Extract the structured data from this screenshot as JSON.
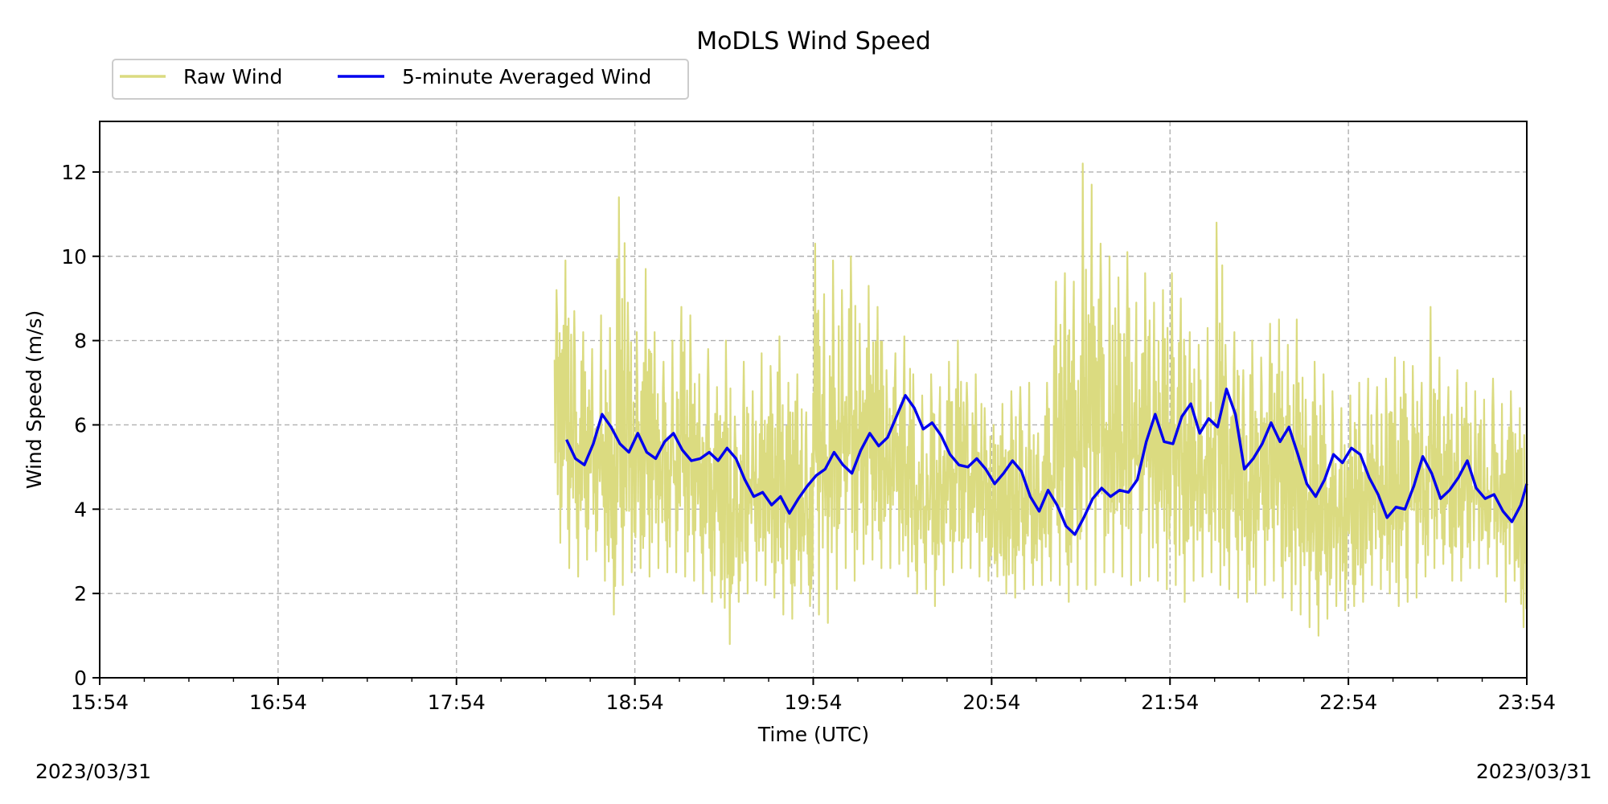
{
  "chart_data": {
    "type": "line",
    "title": "MoDLS Wind Speed",
    "xlabel": "Time (UTC)",
    "ylabel": "Wind Speed (m/s)",
    "xlim": [
      "15:54",
      "23:54"
    ],
    "ylim": [
      0,
      13.2
    ],
    "x_ticks": [
      "15:54",
      "16:54",
      "17:54",
      "18:54",
      "19:54",
      "20:54",
      "21:54",
      "22:54",
      "23:54"
    ],
    "y_ticks": [
      0,
      2,
      4,
      6,
      8,
      10,
      12
    ],
    "grid": true,
    "legend": {
      "placement": "top-left, above plot",
      "entries": [
        "Raw Wind",
        "5-minute Averaged Wind"
      ]
    },
    "date_labels": {
      "start": "2023/03/31",
      "end": "2023/03/31"
    },
    "colors": {
      "raw": "#dbdb80",
      "avg": "#0000ee",
      "grid": "#b0b0b0"
    },
    "series": [
      {
        "name": "Raw Wind",
        "style": "thin line, high-frequency",
        "x": [
          "18:27",
          "18:30",
          "18:33",
          "18:36",
          "18:39",
          "18:42",
          "18:45",
          "18:48",
          "18:51",
          "18:54",
          "18:57",
          "19:00",
          "19:03",
          "19:06",
          "19:09",
          "19:12",
          "19:15",
          "19:18",
          "19:21",
          "19:24",
          "19:27",
          "19:30",
          "19:33",
          "19:36",
          "19:39",
          "19:42",
          "19:45",
          "19:48",
          "19:51",
          "19:54",
          "19:57",
          "20:00",
          "20:03",
          "20:06",
          "20:09",
          "20:12",
          "20:15",
          "20:18",
          "20:21",
          "20:24",
          "20:27",
          "20:30",
          "20:33",
          "20:36",
          "20:39",
          "20:42",
          "20:45",
          "20:48",
          "20:51",
          "20:54",
          "20:57",
          "21:00",
          "21:03",
          "21:06",
          "21:09",
          "21:12",
          "21:15",
          "21:18",
          "21:21",
          "21:24",
          "21:27",
          "21:30",
          "21:33",
          "21:36",
          "21:39",
          "21:42",
          "21:45",
          "21:48",
          "21:51",
          "21:54",
          "21:57",
          "22:00",
          "22:03",
          "22:06",
          "22:09",
          "22:12",
          "22:15",
          "22:18",
          "22:21",
          "22:24",
          "22:27",
          "22:30",
          "22:33",
          "22:36",
          "22:39",
          "22:42",
          "22:45",
          "22:48",
          "22:51",
          "22:54",
          "22:57",
          "23:00",
          "23:03",
          "23:06",
          "23:09",
          "23:12",
          "23:15",
          "23:18",
          "23:21",
          "23:24",
          "23:27",
          "23:30",
          "23:33",
          "23:36",
          "23:39",
          "23:42",
          "23:45",
          "23:48",
          "23:51",
          "23:54"
        ],
        "min": [
          3.2,
          2.6,
          2.4,
          2.8,
          3.0,
          2.3,
          1.5,
          2.2,
          2.5,
          2.6,
          2.4,
          2.6,
          2.5,
          2.5,
          2.4,
          2.3,
          2.0,
          1.8,
          1.9,
          0.8,
          1.8,
          2.0,
          2.3,
          2.2,
          1.9,
          1.5,
          1.4,
          2.0,
          1.7,
          1.5,
          1.3,
          2.1,
          2.6,
          2.3,
          2.7,
          2.8,
          2.6,
          2.6,
          2.7,
          2.4,
          2.0,
          2.1,
          1.7,
          2.2,
          2.5,
          2.6,
          2.6,
          2.4,
          2.3,
          2.4,
          2.0,
          1.9,
          2.1,
          2.2,
          2.2,
          2.3,
          2.2,
          1.8,
          2.2,
          2.1,
          2.2,
          2.5,
          2.5,
          2.4,
          2.2,
          2.3,
          2.4,
          2.3,
          2.1,
          2.2,
          1.8,
          2.3,
          2.4,
          2.5,
          2.2,
          2.1,
          1.9,
          1.8,
          2.0,
          2.2,
          2.3,
          1.9,
          1.6,
          1.5,
          1.2,
          1.0,
          1.4,
          1.7,
          1.6,
          1.7,
          1.8,
          2.2,
          2.1,
          2.0,
          1.7,
          1.8,
          1.9,
          2.4,
          2.6,
          2.7,
          2.3,
          2.3,
          2.6,
          2.6,
          2.7,
          2.4,
          1.8,
          2.3,
          1.2,
          2.0
        ],
        "max": [
          9.2,
          9.9,
          8.7,
          8.2,
          7.8,
          8.6,
          8.3,
          11.4,
          8.9,
          8.2,
          9.7,
          8.2,
          7.5,
          8.0,
          8.8,
          8.6,
          7.2,
          7.8,
          6.9,
          8.0,
          6.2,
          7.5,
          6.8,
          7.7,
          7.4,
          8.1,
          7.0,
          7.2,
          6.3,
          10.3,
          9.1,
          9.9,
          9.2,
          10.0,
          8.4,
          9.3,
          8.8,
          7.3,
          7.7,
          8.1,
          7.2,
          6.7,
          7.2,
          6.9,
          7.5,
          8.0,
          7.0,
          7.2,
          6.4,
          6.0,
          6.5,
          6.8,
          6.9,
          7.0,
          5.8,
          7.0,
          9.4,
          9.6,
          9.4,
          12.2,
          11.7,
          10.3,
          10.0,
          9.5,
          10.1,
          8.9,
          9.6,
          8.9,
          9.2,
          9.6,
          9.0,
          8.2,
          7.9,
          8.3,
          10.8,
          7.9,
          8.2,
          7.3,
          8.0,
          7.6,
          8.4,
          8.5,
          7.9,
          8.5,
          6.6,
          7.5,
          7.2,
          6.8,
          6.4,
          6.7,
          7.0,
          7.1,
          6.9,
          7.1,
          7.6,
          7.5,
          7.4,
          7.0,
          8.8,
          7.6,
          6.9,
          7.3,
          7.0,
          6.8,
          6.6,
          7.1,
          6.5,
          6.8,
          6.4,
          7.9
        ]
      },
      {
        "name": "5-minute Averaged Wind",
        "x": [
          "18:31",
          "18:34",
          "18:37",
          "18:40",
          "18:43",
          "18:46",
          "18:49",
          "18:52",
          "18:55",
          "18:58",
          "19:01",
          "19:04",
          "19:07",
          "19:10",
          "19:13",
          "19:16",
          "19:19",
          "19:22",
          "19:25",
          "19:28",
          "19:31",
          "19:34",
          "19:37",
          "19:40",
          "19:43",
          "19:46",
          "19:49",
          "19:52",
          "19:55",
          "19:58",
          "20:01",
          "20:04",
          "20:07",
          "20:10",
          "20:13",
          "20:16",
          "20:19",
          "20:22",
          "20:25",
          "20:28",
          "20:31",
          "20:34",
          "20:37",
          "20:40",
          "20:43",
          "20:46",
          "20:49",
          "20:52",
          "20:55",
          "20:58",
          "21:01",
          "21:04",
          "21:07",
          "21:10",
          "21:13",
          "21:16",
          "21:19",
          "21:22",
          "21:25",
          "21:28",
          "21:31",
          "21:34",
          "21:37",
          "21:40",
          "21:43",
          "21:46",
          "21:49",
          "21:52",
          "21:55",
          "21:58",
          "22:01",
          "22:04",
          "22:07",
          "22:10",
          "22:13",
          "22:16",
          "22:19",
          "22:22",
          "22:25",
          "22:28",
          "22:31",
          "22:34",
          "22:37",
          "22:40",
          "22:43",
          "22:46",
          "22:49",
          "22:52",
          "22:55",
          "22:58",
          "23:01",
          "23:04",
          "23:07",
          "23:10",
          "23:13",
          "23:16",
          "23:19",
          "23:22",
          "23:25",
          "23:28",
          "23:31",
          "23:34",
          "23:37",
          "23:40",
          "23:43",
          "23:46",
          "23:49",
          "23:52",
          "23:54"
        ],
        "values": [
          5.65,
          5.2,
          5.05,
          5.55,
          6.25,
          5.95,
          5.55,
          5.35,
          5.8,
          5.35,
          5.2,
          5.6,
          5.8,
          5.4,
          5.15,
          5.2,
          5.35,
          5.15,
          5.45,
          5.2,
          4.7,
          4.3,
          4.4,
          4.1,
          4.3,
          3.9,
          4.25,
          4.55,
          4.8,
          4.95,
          5.35,
          5.05,
          4.85,
          5.4,
          5.8,
          5.5,
          5.7,
          6.2,
          6.7,
          6.4,
          5.9,
          6.05,
          5.75,
          5.3,
          5.05,
          5.0,
          5.2,
          4.95,
          4.6,
          4.85,
          5.15,
          4.9,
          4.3,
          3.95,
          4.45,
          4.1,
          3.6,
          3.4,
          3.8,
          4.25,
          4.5,
          4.3,
          4.45,
          4.4,
          4.7,
          5.6,
          6.25,
          5.6,
          5.55,
          6.2,
          6.5,
          5.8,
          6.15,
          5.95,
          6.85,
          6.25,
          4.95,
          5.2,
          5.55,
          6.05,
          5.6,
          5.95,
          5.3,
          4.6,
          4.3,
          4.7,
          5.3,
          5.1,
          5.45,
          5.3,
          4.75,
          4.35,
          3.8,
          4.05,
          4.0,
          4.55,
          5.25,
          4.85,
          4.25,
          4.45,
          4.75,
          5.15,
          4.5,
          4.25,
          4.35,
          3.95,
          3.7,
          4.1,
          4.6
        ]
      }
    ]
  }
}
